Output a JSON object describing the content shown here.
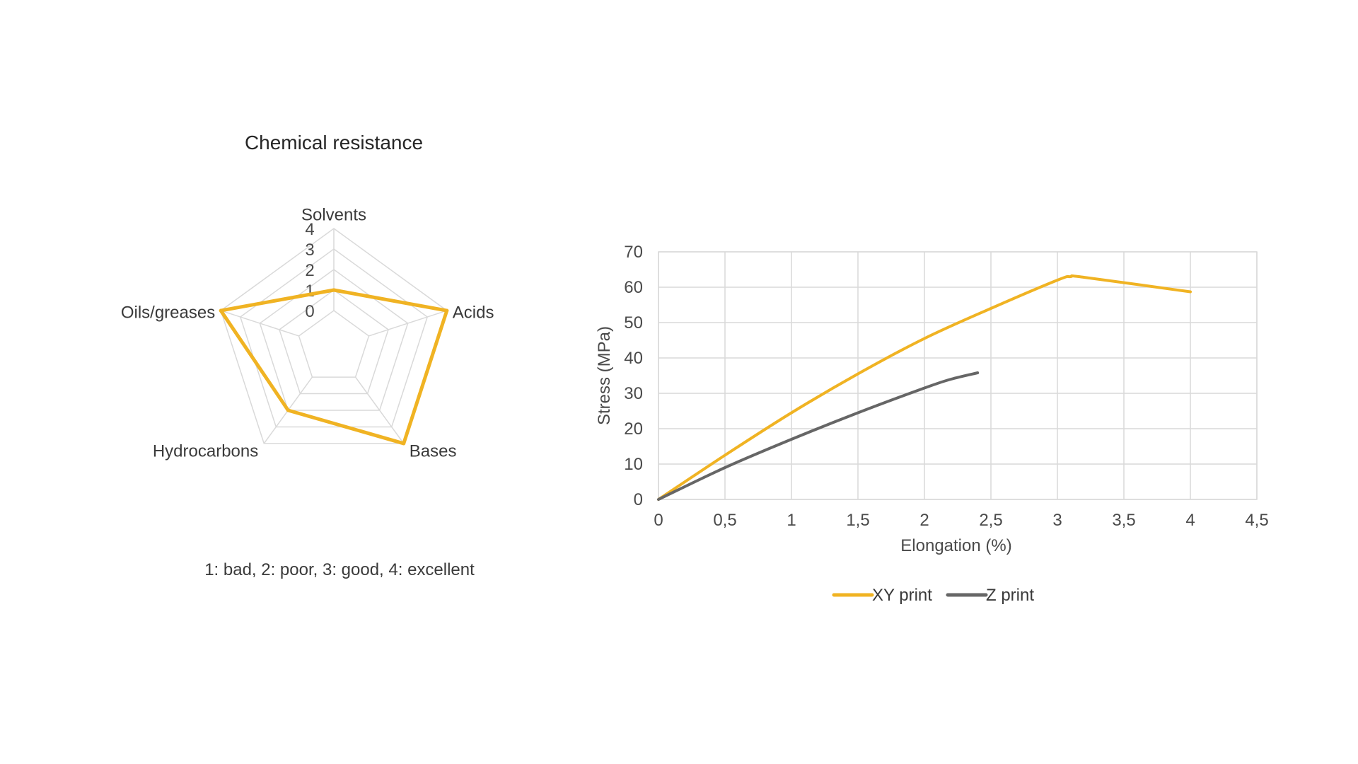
{
  "chart_data": [
    {
      "type": "radar",
      "title": "Chemical resistance",
      "categories": [
        "Solvents",
        "Acids",
        "Bases",
        "Hydrocarbons",
        "Oils/greases"
      ],
      "rlim": [
        0,
        4
      ],
      "r_ticks": [
        "0",
        "1",
        "2",
        "3",
        "4"
      ],
      "series": [
        {
          "values": [
            1,
            4,
            4,
            2,
            4
          ],
          "color": "#F0B323"
        }
      ],
      "note": "1: bad, 2: poor, 3: good, 4: excellent",
      "grid": true
    },
    {
      "type": "line",
      "title": "",
      "xlabel": "Elongation (%)",
      "ylabel": "Stress (MPa)",
      "xlim": [
        0,
        4.5
      ],
      "ylim": [
        0,
        70
      ],
      "x_ticks": [
        "0",
        "0,5",
        "1",
        "1,5",
        "2",
        "2,5",
        "3",
        "3,5",
        "4",
        "4,5"
      ],
      "y_ticks": [
        "0",
        "10",
        "20",
        "30",
        "40",
        "50",
        "60",
        "70"
      ],
      "grid": true,
      "legend_position": "bottom",
      "series": [
        {
          "name": "XY print",
          "color": "#F0B323",
          "points": [
            [
              0,
              0
            ],
            [
              0.5,
              12.5
            ],
            [
              1,
              24.5
            ],
            [
              1.5,
              35.5
            ],
            [
              2,
              45.5
            ],
            [
              2.5,
              54
            ],
            [
              3,
              62
            ],
            [
              3.1,
              63
            ],
            [
              3.2,
              62.8
            ],
            [
              4,
              58.7
            ]
          ]
        },
        {
          "name": "Z print",
          "color": "#666666",
          "points": [
            [
              0,
              0
            ],
            [
              0.5,
              9
            ],
            [
              1,
              17
            ],
            [
              1.5,
              24.5
            ],
            [
              2,
              31.5
            ],
            [
              2.2,
              34
            ],
            [
              2.4,
              35.8
            ]
          ]
        }
      ]
    }
  ]
}
